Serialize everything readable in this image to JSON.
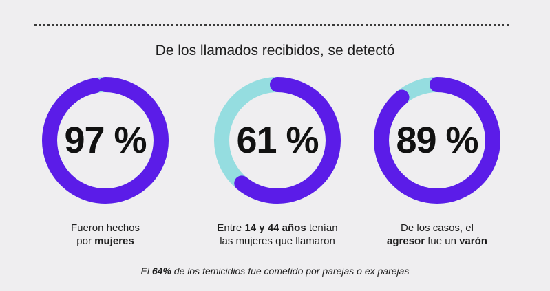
{
  "headline": "De los llamados recibidos, se detectó",
  "colors": {
    "primary": "#5b1ce8",
    "secondary": "#95dde0",
    "background": "#efeef0"
  },
  "stats": [
    {
      "value_label": "97 %",
      "percent": 97,
      "caption_line1": "Fueron hechos",
      "caption_line2_pre": "por ",
      "caption_line2_bold": "mujeres",
      "caption_line2_post": ""
    },
    {
      "value_label": "61 %",
      "percent": 61,
      "caption_line1_pre": "Entre ",
      "caption_line1_bold": "14 y 44 años",
      "caption_line1_post": " tenían",
      "caption_line2": "las mujeres que llamaron"
    },
    {
      "value_label": "89 %",
      "percent": 89,
      "caption_line1": "De los casos, el",
      "caption_line2_bold1": "agresor",
      "caption_line2_mid": " fue un ",
      "caption_line2_bold2": "varón"
    }
  ],
  "footnote": {
    "pre": "El ",
    "bold": "64%",
    "post": " de los femicidios fue cometido por parejas o ex parejas"
  }
}
